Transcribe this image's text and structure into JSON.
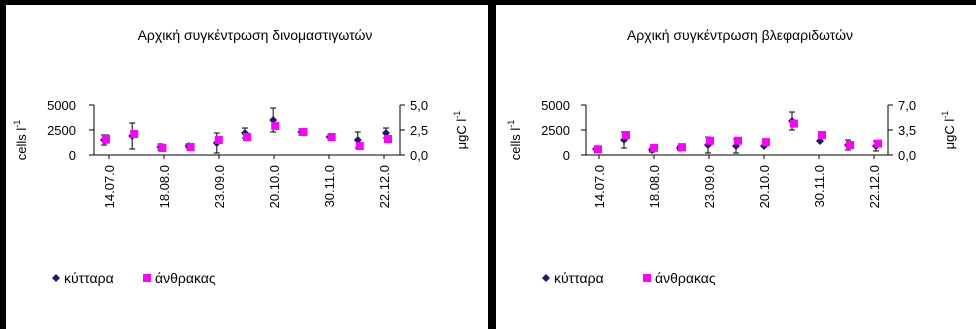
{
  "charts": [
    {
      "title": "Αρχική συγκέντρωση δινομαστιγωτών",
      "ylabel_left": "cells l",
      "ylabel_left_sup": "-1",
      "ylabel_right": "μgC l",
      "ylabel_right_sup": "-1",
      "yticks_left": [
        "5000",
        "2500",
        "0"
      ],
      "yticks_right": [
        "5,0",
        "2,5",
        "0,0"
      ],
      "xtick_labels": [
        "14.07.0",
        "18.08.0",
        "23.09.0",
        "20.10.0",
        "30.11.0",
        "22.12.0"
      ],
      "legend": [
        "κύτταρα",
        "άνθρακας"
      ]
    },
    {
      "title": "Αρχική συγκέντρωση βλεφαριδωτών",
      "ylabel_left": "cells l",
      "ylabel_left_sup": "-1",
      "ylabel_right": "μgC l",
      "ylabel_right_sup": "-1",
      "yticks_left": [
        "5000",
        "2500",
        "0"
      ],
      "yticks_right": [
        "7,0",
        "3,5",
        "0,0"
      ],
      "xtick_labels": [
        "14.07.0",
        "18.08.0",
        "23.09.0",
        "20.10.0",
        "30.11.0",
        "22.12.0"
      ],
      "legend": [
        "κύτταρα",
        "άνθρακας"
      ]
    }
  ],
  "chart_data": [
    {
      "type": "scatter",
      "title": "Αρχική συγκέντρωση δινομαστιγωτών",
      "ylabel": "cells l-1",
      "y2label": "μgC l-1",
      "ylim": [
        0,
        5000
      ],
      "y2lim": [
        0,
        5
      ],
      "x_tick_labels": [
        "14.07.0",
        "18.08.0",
        "23.09.0",
        "20.10.0",
        "30.11.0",
        "22.12.0"
      ],
      "grid": false,
      "legend_position": "bottom-left",
      "colors": {
        "cells": "#1a1a6e",
        "carbon": "#ff00ff"
      },
      "series": [
        {
          "name": "κύτταρα",
          "axis": "left",
          "marker": "diamond",
          "values": [
            1500,
            1900,
            800,
            900,
            1200,
            2200,
            3500,
            2300,
            1800,
            1500,
            2200
          ],
          "errors": [
            500,
            1300,
            300,
            200,
            1000,
            500,
            1200,
            300,
            0,
            800,
            500
          ]
        },
        {
          "name": "άνθρακας",
          "axis": "right",
          "marker": "square",
          "values": [
            1.6,
            2.1,
            0.7,
            0.8,
            1.5,
            1.8,
            2.9,
            2.3,
            1.8,
            0.9,
            1.6
          ],
          "errors": [
            0.4,
            0,
            0,
            0,
            0,
            0,
            0,
            0,
            0,
            0,
            0
          ]
        }
      ]
    },
    {
      "type": "scatter",
      "title": "Αρχική συγκέντρωση βλεφαριδωτών",
      "ylabel": "cells l-1",
      "y2label": "μgC l-1",
      "ylim": [
        0,
        5000
      ],
      "y2lim": [
        0,
        7
      ],
      "x_tick_labels": [
        "14.07.0",
        "18.08.0",
        "23.09.0",
        "20.10.0",
        "30.11.0",
        "22.12.0"
      ],
      "grid": false,
      "legend_position": "bottom-left",
      "colors": {
        "cells": "#1a1a6e",
        "carbon": "#ff00ff"
      },
      "series": [
        {
          "name": "κύτταρα",
          "axis": "left",
          "marker": "diamond",
          "values": [
            600,
            1500,
            500,
            700,
            1000,
            900,
            900,
            3400,
            1400,
            1000,
            900
          ],
          "errors": [
            0,
            800,
            200,
            200,
            800,
            700,
            0,
            900,
            0,
            500,
            500
          ]
        },
        {
          "name": "άνθρακας",
          "axis": "right",
          "marker": "square",
          "values": [
            0.8,
            2.8,
            1.0,
            1.1,
            2.0,
            2.0,
            1.8,
            4.4,
            2.8,
            1.4,
            1.6
          ],
          "errors": [
            0,
            0,
            0,
            0,
            0,
            0,
            0,
            0,
            0,
            0,
            0
          ]
        }
      ]
    }
  ]
}
